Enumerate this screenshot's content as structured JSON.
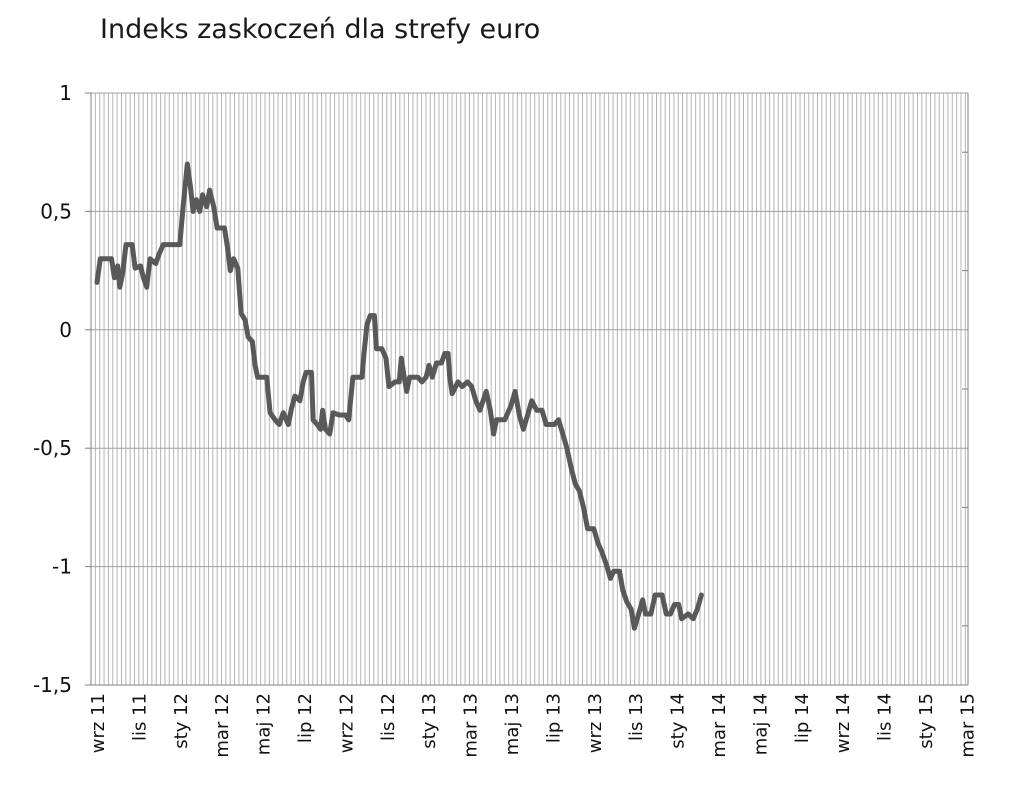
{
  "chart_data": {
    "type": "line",
    "title": "Indeks zaskoczeń dla strefy euro",
    "xlabel": "",
    "ylabel": "",
    "ylim": [
      -1.5,
      1
    ],
    "yticks": [
      "1",
      "0,5",
      "0",
      "-0,5",
      "-1",
      "-1,5"
    ],
    "xtick_labels": [
      "wrz 11",
      "lis 11",
      "sty 12",
      "mar 12",
      "maj 12",
      "lip 12",
      "wrz 12",
      "lis 12",
      "sty 13",
      "mar 13",
      "maj 13",
      "lip 13",
      "wrz 13",
      "lis 13",
      "sty 14",
      "mar 14",
      "maj 14",
      "lip 14",
      "wrz 14",
      "lis 14",
      "sty 15",
      "mar 15"
    ],
    "grid": "vertical-and-horizontal",
    "legend": "none",
    "line_color": "#595959",
    "series": [
      {
        "points": [
          [
            0.0,
            0.2
          ],
          [
            0.08,
            0.3
          ],
          [
            0.35,
            0.3
          ],
          [
            0.42,
            0.22
          ],
          [
            0.5,
            0.27
          ],
          [
            0.55,
            0.18
          ],
          [
            0.62,
            0.24
          ],
          [
            0.7,
            0.36
          ],
          [
            0.85,
            0.36
          ],
          [
            0.92,
            0.26
          ],
          [
            1.05,
            0.27
          ],
          [
            1.12,
            0.22
          ],
          [
            1.2,
            0.18
          ],
          [
            1.28,
            0.3
          ],
          [
            1.42,
            0.28
          ],
          [
            1.5,
            0.32
          ],
          [
            1.6,
            0.36
          ],
          [
            2.0,
            0.36
          ],
          [
            2.08,
            0.52
          ],
          [
            2.18,
            0.7
          ],
          [
            2.26,
            0.6
          ],
          [
            2.32,
            0.5
          ],
          [
            2.4,
            0.55
          ],
          [
            2.48,
            0.5
          ],
          [
            2.55,
            0.57
          ],
          [
            2.65,
            0.52
          ],
          [
            2.72,
            0.59
          ],
          [
            2.82,
            0.52
          ],
          [
            2.9,
            0.43
          ],
          [
            3.08,
            0.43
          ],
          [
            3.15,
            0.35
          ],
          [
            3.22,
            0.25
          ],
          [
            3.3,
            0.3
          ],
          [
            3.4,
            0.26
          ],
          [
            3.48,
            0.07
          ],
          [
            3.58,
            0.04
          ],
          [
            3.65,
            -0.03
          ],
          [
            3.75,
            -0.05
          ],
          [
            3.82,
            -0.15
          ],
          [
            3.88,
            -0.2
          ],
          [
            4.1,
            -0.2
          ],
          [
            4.18,
            -0.35
          ],
          [
            4.3,
            -0.38
          ],
          [
            4.4,
            -0.4
          ],
          [
            4.5,
            -0.35
          ],
          [
            4.62,
            -0.4
          ],
          [
            4.7,
            -0.33
          ],
          [
            4.78,
            -0.28
          ],
          [
            4.9,
            -0.3
          ],
          [
            4.98,
            -0.22
          ],
          [
            5.05,
            -0.18
          ],
          [
            5.18,
            -0.18
          ],
          [
            5.22,
            -0.38
          ],
          [
            5.32,
            -0.4
          ],
          [
            5.4,
            -0.42
          ],
          [
            5.45,
            -0.34
          ],
          [
            5.52,
            -0.42
          ],
          [
            5.62,
            -0.44
          ],
          [
            5.7,
            -0.35
          ],
          [
            5.85,
            -0.36
          ],
          [
            6.0,
            -0.36
          ],
          [
            6.08,
            -0.38
          ],
          [
            6.18,
            -0.2
          ],
          [
            6.28,
            -0.2
          ],
          [
            6.4,
            -0.2
          ],
          [
            6.45,
            -0.1
          ],
          [
            6.52,
            0.02
          ],
          [
            6.6,
            0.06
          ],
          [
            6.7,
            0.06
          ],
          [
            6.75,
            -0.08
          ],
          [
            6.88,
            -0.08
          ],
          [
            6.98,
            -0.12
          ],
          [
            7.05,
            -0.24
          ],
          [
            7.2,
            -0.22
          ],
          [
            7.3,
            -0.22
          ],
          [
            7.35,
            -0.12
          ],
          [
            7.42,
            -0.2
          ],
          [
            7.48,
            -0.26
          ],
          [
            7.55,
            -0.2
          ],
          [
            7.65,
            -0.2
          ],
          [
            7.75,
            -0.2
          ],
          [
            7.85,
            -0.22
          ],
          [
            7.95,
            -0.2
          ],
          [
            8.02,
            -0.15
          ],
          [
            8.1,
            -0.2
          ],
          [
            8.2,
            -0.14
          ],
          [
            8.32,
            -0.14
          ],
          [
            8.4,
            -0.1
          ],
          [
            8.48,
            -0.1
          ],
          [
            8.52,
            -0.2
          ],
          [
            8.58,
            -0.27
          ],
          [
            8.72,
            -0.22
          ],
          [
            8.82,
            -0.24
          ],
          [
            8.95,
            -0.22
          ],
          [
            9.05,
            -0.24
          ],
          [
            9.15,
            -0.3
          ],
          [
            9.25,
            -0.34
          ],
          [
            9.4,
            -0.26
          ],
          [
            9.5,
            -0.34
          ],
          [
            9.58,
            -0.44
          ],
          [
            9.65,
            -0.38
          ],
          [
            9.85,
            -0.38
          ],
          [
            10.0,
            -0.32
          ],
          [
            10.1,
            -0.26
          ],
          [
            10.2,
            -0.36
          ],
          [
            10.3,
            -0.42
          ],
          [
            10.4,
            -0.36
          ],
          [
            10.5,
            -0.3
          ],
          [
            10.62,
            -0.34
          ],
          [
            10.75,
            -0.34
          ],
          [
            10.85,
            -0.4
          ],
          [
            11.05,
            -0.4
          ],
          [
            11.15,
            -0.38
          ],
          [
            11.25,
            -0.44
          ],
          [
            11.35,
            -0.5
          ],
          [
            11.45,
            -0.58
          ],
          [
            11.55,
            -0.65
          ],
          [
            11.65,
            -0.68
          ],
          [
            11.75,
            -0.75
          ],
          [
            11.85,
            -0.84
          ],
          [
            12.0,
            -0.84
          ],
          [
            12.1,
            -0.9
          ],
          [
            12.2,
            -0.94
          ],
          [
            12.32,
            -1.0
          ],
          [
            12.4,
            -1.05
          ],
          [
            12.48,
            -1.02
          ],
          [
            12.62,
            -1.02
          ],
          [
            12.7,
            -1.1
          ],
          [
            12.8,
            -1.15
          ],
          [
            12.9,
            -1.18
          ],
          [
            12.98,
            -1.26
          ],
          [
            13.05,
            -1.22
          ],
          [
            13.18,
            -1.14
          ],
          [
            13.25,
            -1.2
          ],
          [
            13.38,
            -1.2
          ],
          [
            13.48,
            -1.12
          ],
          [
            13.65,
            -1.12
          ],
          [
            13.75,
            -1.2
          ],
          [
            13.85,
            -1.2
          ],
          [
            13.95,
            -1.16
          ],
          [
            14.05,
            -1.16
          ],
          [
            14.12,
            -1.22
          ],
          [
            14.28,
            -1.2
          ],
          [
            14.4,
            -1.22
          ],
          [
            14.5,
            -1.18
          ],
          [
            14.6,
            -1.12
          ]
        ]
      }
    ]
  }
}
